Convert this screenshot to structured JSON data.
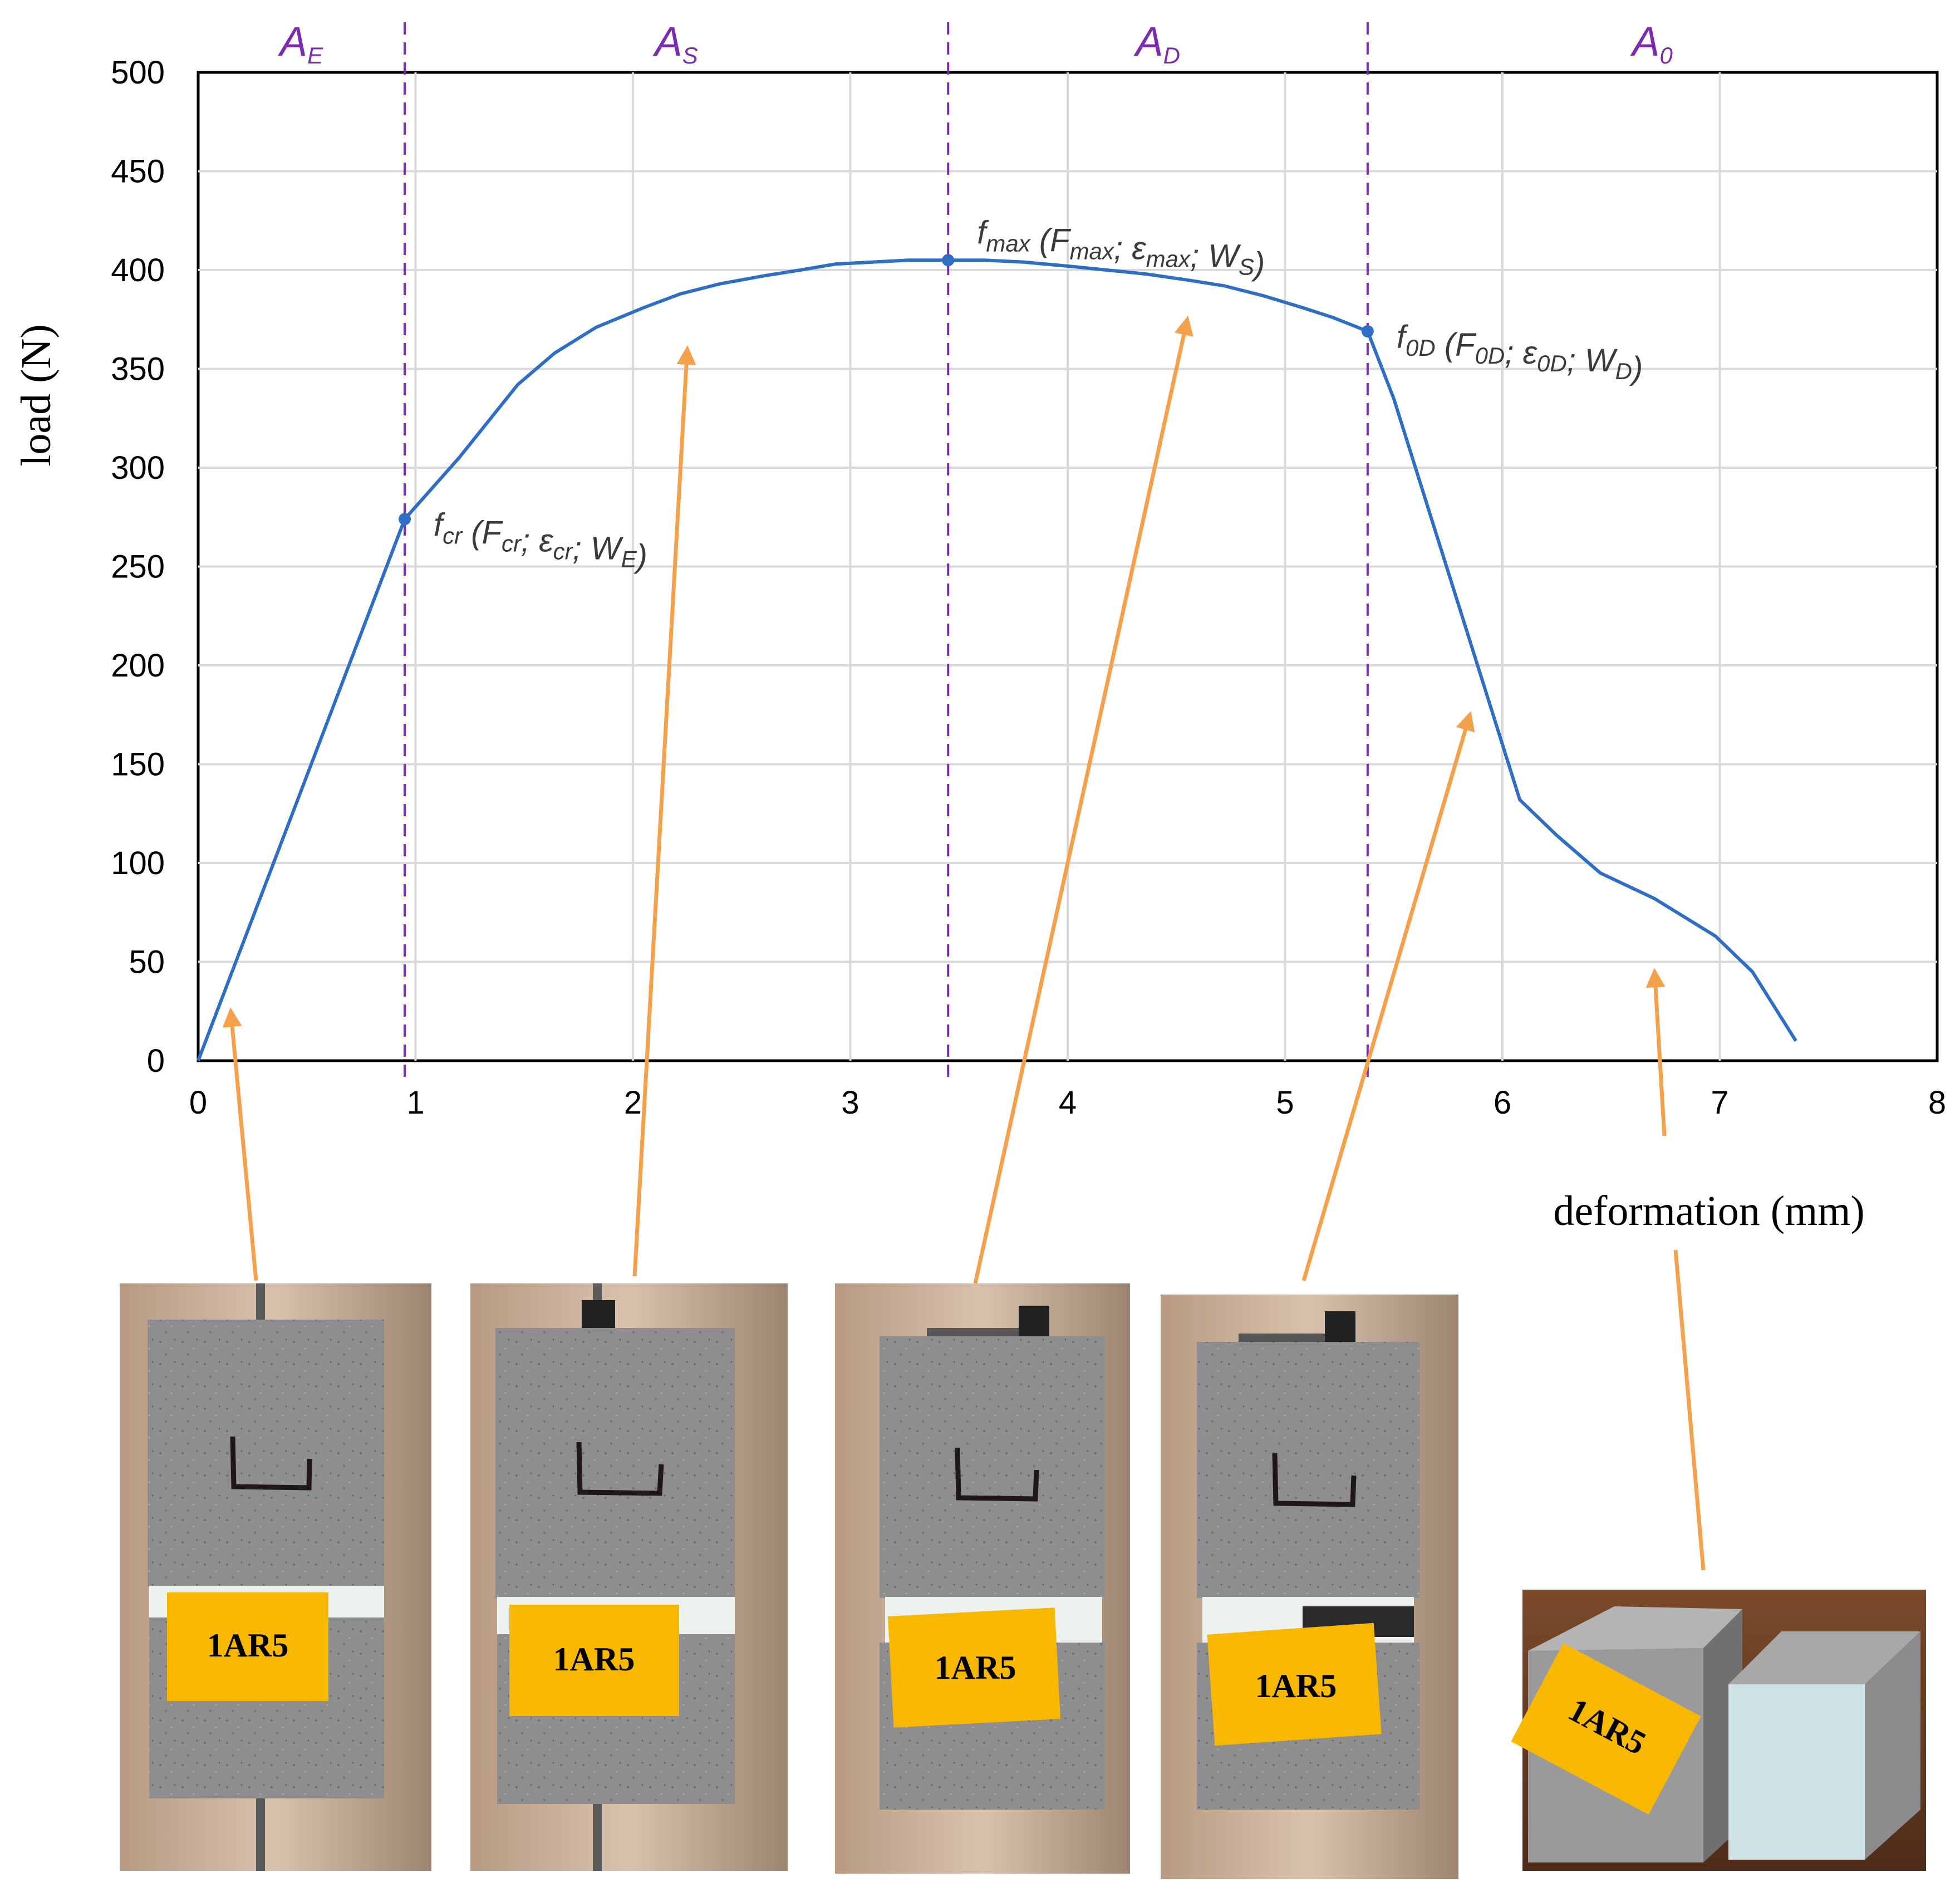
{
  "chart_data": {
    "type": "line",
    "xlabel": "deformation (mm)",
    "ylabel": "load (N)",
    "xlim": [
      0,
      8
    ],
    "ylim": [
      0,
      500
    ],
    "x_ticks": [
      "0",
      "1",
      "2",
      "3",
      "4",
      "5",
      "6",
      "7",
      "8"
    ],
    "y_ticks": [
      "0",
      "50",
      "100",
      "150",
      "200",
      "250",
      "300",
      "350",
      "400",
      "450",
      "500"
    ],
    "grid": true,
    "series": [
      {
        "color": "#2e6ec4",
        "x": [
          0,
          0.95,
          1.2,
          1.47,
          1.64,
          1.83,
          2.05,
          2.22,
          2.4,
          2.6,
          2.77,
          2.93,
          3.1,
          3.27,
          3.45,
          3.62,
          3.8,
          4.0,
          4.18,
          4.36,
          4.55,
          4.72,
          4.9,
          5.08,
          5.22,
          5.38,
          5.5,
          5.7,
          5.9,
          6.08,
          6.25,
          6.45,
          6.7,
          6.98,
          7.15,
          7.35
        ],
        "y": [
          0,
          274,
          305,
          342,
          358,
          371,
          381,
          388,
          393,
          397,
          400,
          403,
          404,
          405,
          405,
          405,
          404,
          402,
          400,
          398,
          395,
          392,
          387,
          381,
          376,
          369,
          335,
          265,
          195,
          132,
          114,
          95,
          82,
          63,
          45,
          10
        ]
      }
    ],
    "zones": [
      {
        "label_main": "A",
        "label_sub": "E"
      },
      {
        "label_main": "A",
        "label_sub": "S"
      },
      {
        "label_main": "A",
        "label_sub": "D"
      },
      {
        "label_main": "A",
        "label_sub": "0"
      }
    ],
    "zone_boundaries_x": [
      0.95,
      3.45,
      5.38
    ],
    "key_points": [
      {
        "x": 0.95,
        "y": 274,
        "f": "f",
        "f_sub": "cr",
        "F_sub": "cr",
        "e_sub": "cr",
        "W_sub": "E"
      },
      {
        "x": 3.45,
        "y": 405,
        "f": "f",
        "f_sub": "max",
        "F_sub": "max",
        "e_sub": "max",
        "W_sub": "S"
      },
      {
        "x": 5.38,
        "y": 369,
        "f": "f",
        "f_sub": "0D",
        "F_sub": "0D",
        "e_sub": "0D",
        "W_sub": "D"
      }
    ],
    "pointer_targets": [
      {
        "x": 0.15,
        "y": 25
      },
      {
        "x": 2.25,
        "y": 360
      },
      {
        "x": 4.55,
        "y": 375
      },
      {
        "x": 5.85,
        "y": 175
      },
      {
        "x": 6.7,
        "y": 45
      }
    ],
    "colors": {
      "line": "#2e6ec4",
      "boundary": "#7a2bb0",
      "arrow": "#f5a04a",
      "tag": "#f9b800"
    }
  },
  "photos": [
    {
      "name": "photo-elastic",
      "tag": "1AR5"
    },
    {
      "name": "photo-stable",
      "tag": "1AR5"
    },
    {
      "name": "photo-damaged",
      "tag": "1AR5"
    },
    {
      "name": "photo-failing",
      "tag": "1AR5"
    },
    {
      "name": "photo-failed",
      "tag": "1AR5"
    }
  ]
}
